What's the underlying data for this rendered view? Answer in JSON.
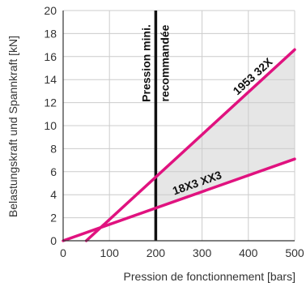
{
  "chart_data": {
    "type": "line",
    "xlabel": "Pression de fonctionnement [bars]",
    "ylabel": "Belastungskraft und Spannkraft [kN]",
    "xlim": [
      0,
      500
    ],
    "ylim": [
      0,
      20
    ],
    "x_ticks": [
      0,
      100,
      200,
      300,
      400,
      500
    ],
    "y_ticks": [
      0,
      2,
      4,
      6,
      8,
      10,
      12,
      14,
      16,
      18,
      20
    ],
    "grid": true,
    "series": [
      {
        "name": "1953 32X",
        "color": "#e0127f",
        "x": [
          50,
          500
        ],
        "y": [
          0,
          16.6
        ]
      },
      {
        "name": "18X3 XX3",
        "color": "#e0127f",
        "x": [
          0,
          500
        ],
        "y": [
          0,
          7.1
        ]
      }
    ],
    "shaded_region": {
      "between_series": [
        "1953 32X",
        "18X3 XX3"
      ],
      "x_from": 200,
      "x_to": 500,
      "color": "#e6e6e6"
    },
    "reference_line": {
      "x": 200,
      "label_line1": "Pression mini.",
      "label_line2": "recommandée",
      "color": "#111111"
    },
    "colors": {
      "series": "#e0127f",
      "grid": "#cccccc",
      "axis": "#333333",
      "shade": "#e6e6e6"
    }
  }
}
